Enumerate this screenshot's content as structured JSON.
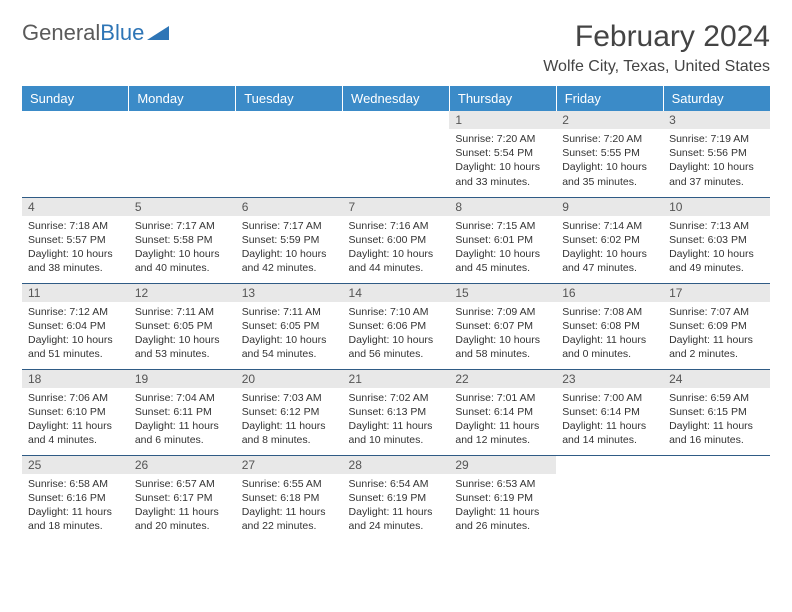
{
  "logo": {
    "text_gray": "General",
    "text_blue": "Blue"
  },
  "title": "February 2024",
  "location": "Wolfe City, Texas, United States",
  "colors": {
    "header_bg": "#3b8bc8",
    "header_text": "#ffffff",
    "row_divider": "#2f5b85",
    "daynum_bg": "#e8e8e8",
    "body_bg": "#ffffff",
    "text": "#333333",
    "logo_gray": "#5a5a5a",
    "logo_blue": "#2e75b6"
  },
  "day_headers": [
    "Sunday",
    "Monday",
    "Tuesday",
    "Wednesday",
    "Thursday",
    "Friday",
    "Saturday"
  ],
  "weeks": [
    [
      null,
      null,
      null,
      null,
      {
        "n": "1",
        "sr": "7:20 AM",
        "ss": "5:54 PM",
        "dl": "10 hours and 33 minutes."
      },
      {
        "n": "2",
        "sr": "7:20 AM",
        "ss": "5:55 PM",
        "dl": "10 hours and 35 minutes."
      },
      {
        "n": "3",
        "sr": "7:19 AM",
        "ss": "5:56 PM",
        "dl": "10 hours and 37 minutes."
      }
    ],
    [
      {
        "n": "4",
        "sr": "7:18 AM",
        "ss": "5:57 PM",
        "dl": "10 hours and 38 minutes."
      },
      {
        "n": "5",
        "sr": "7:17 AM",
        "ss": "5:58 PM",
        "dl": "10 hours and 40 minutes."
      },
      {
        "n": "6",
        "sr": "7:17 AM",
        "ss": "5:59 PM",
        "dl": "10 hours and 42 minutes."
      },
      {
        "n": "7",
        "sr": "7:16 AM",
        "ss": "6:00 PM",
        "dl": "10 hours and 44 minutes."
      },
      {
        "n": "8",
        "sr": "7:15 AM",
        "ss": "6:01 PM",
        "dl": "10 hours and 45 minutes."
      },
      {
        "n": "9",
        "sr": "7:14 AM",
        "ss": "6:02 PM",
        "dl": "10 hours and 47 minutes."
      },
      {
        "n": "10",
        "sr": "7:13 AM",
        "ss": "6:03 PM",
        "dl": "10 hours and 49 minutes."
      }
    ],
    [
      {
        "n": "11",
        "sr": "7:12 AM",
        "ss": "6:04 PM",
        "dl": "10 hours and 51 minutes."
      },
      {
        "n": "12",
        "sr": "7:11 AM",
        "ss": "6:05 PM",
        "dl": "10 hours and 53 minutes."
      },
      {
        "n": "13",
        "sr": "7:11 AM",
        "ss": "6:05 PM",
        "dl": "10 hours and 54 minutes."
      },
      {
        "n": "14",
        "sr": "7:10 AM",
        "ss": "6:06 PM",
        "dl": "10 hours and 56 minutes."
      },
      {
        "n": "15",
        "sr": "7:09 AM",
        "ss": "6:07 PM",
        "dl": "10 hours and 58 minutes."
      },
      {
        "n": "16",
        "sr": "7:08 AM",
        "ss": "6:08 PM",
        "dl": "11 hours and 0 minutes."
      },
      {
        "n": "17",
        "sr": "7:07 AM",
        "ss": "6:09 PM",
        "dl": "11 hours and 2 minutes."
      }
    ],
    [
      {
        "n": "18",
        "sr": "7:06 AM",
        "ss": "6:10 PM",
        "dl": "11 hours and 4 minutes."
      },
      {
        "n": "19",
        "sr": "7:04 AM",
        "ss": "6:11 PM",
        "dl": "11 hours and 6 minutes."
      },
      {
        "n": "20",
        "sr": "7:03 AM",
        "ss": "6:12 PM",
        "dl": "11 hours and 8 minutes."
      },
      {
        "n": "21",
        "sr": "7:02 AM",
        "ss": "6:13 PM",
        "dl": "11 hours and 10 minutes."
      },
      {
        "n": "22",
        "sr": "7:01 AM",
        "ss": "6:14 PM",
        "dl": "11 hours and 12 minutes."
      },
      {
        "n": "23",
        "sr": "7:00 AM",
        "ss": "6:14 PM",
        "dl": "11 hours and 14 minutes."
      },
      {
        "n": "24",
        "sr": "6:59 AM",
        "ss": "6:15 PM",
        "dl": "11 hours and 16 minutes."
      }
    ],
    [
      {
        "n": "25",
        "sr": "6:58 AM",
        "ss": "6:16 PM",
        "dl": "11 hours and 18 minutes."
      },
      {
        "n": "26",
        "sr": "6:57 AM",
        "ss": "6:17 PM",
        "dl": "11 hours and 20 minutes."
      },
      {
        "n": "27",
        "sr": "6:55 AM",
        "ss": "6:18 PM",
        "dl": "11 hours and 22 minutes."
      },
      {
        "n": "28",
        "sr": "6:54 AM",
        "ss": "6:19 PM",
        "dl": "11 hours and 24 minutes."
      },
      {
        "n": "29",
        "sr": "6:53 AM",
        "ss": "6:19 PM",
        "dl": "11 hours and 26 minutes."
      },
      null,
      null
    ]
  ],
  "labels": {
    "sunrise": "Sunrise:",
    "sunset": "Sunset:",
    "daylight": "Daylight:"
  }
}
